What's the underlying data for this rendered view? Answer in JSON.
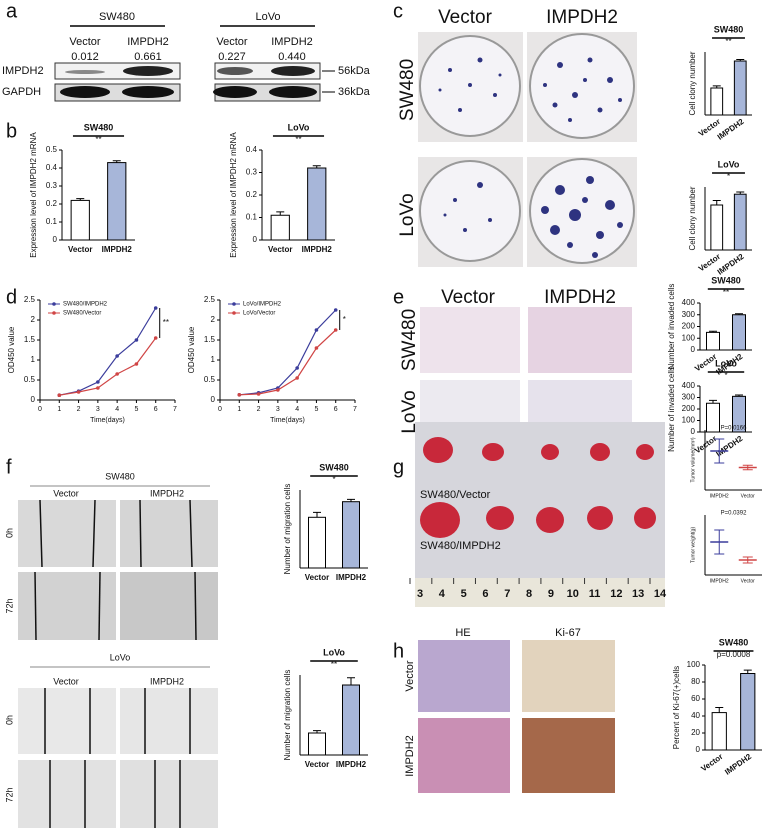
{
  "panel_letters": [
    "a",
    "b",
    "c",
    "d",
    "e",
    "f",
    "g",
    "h"
  ],
  "blot": {
    "cell_lines": [
      "SW480",
      "LoVo"
    ],
    "lanes": [
      "Vector",
      "IMPDH2",
      "Vector",
      "IMPDH2"
    ],
    "ratios": [
      "0.012",
      "0.661",
      "0.227",
      "0.440"
    ],
    "proteins": [
      "IMPDH2",
      "GAPDH"
    ],
    "sizes": [
      "56kDa",
      "36kDa"
    ]
  },
  "photo_labels": {
    "c": {
      "cols": [
        "Vector",
        "IMPDH2"
      ],
      "rows": [
        "SW480",
        "LoVo"
      ]
    },
    "e": {
      "cols": [
        "Vector",
        "IMPDH2"
      ],
      "rows": [
        "SW480",
        "LoVo"
      ]
    },
    "f": {
      "top": {
        "title": "SW480",
        "cols": [
          "Vector",
          "IMPDH2"
        ],
        "rows": [
          "0h",
          "72h"
        ]
      },
      "bottom": {
        "title": "LoVo",
        "cols": [
          "Vector",
          "IMPDH2"
        ],
        "rows": [
          "0h",
          "72h"
        ]
      }
    },
    "g": {
      "labels": [
        "SW480/Vector",
        "SW480/IMPDH2"
      ],
      "ruler": [
        "3",
        "4",
        "5",
        "6",
        "7",
        "8",
        "9",
        "10",
        "11",
        "12",
        "13",
        "14"
      ]
    },
    "h": {
      "cols": [
        "HE",
        "Ki-67"
      ],
      "rows": [
        "Vector",
        "IMPDH2"
      ]
    }
  },
  "chart_data": [
    {
      "type": "bar",
      "title": "SW480",
      "annotation": "**",
      "ylabel": "Expression level of IMPDH2 mRNA",
      "categories": [
        "Vector",
        "IMPDH2"
      ],
      "values": [
        0.22,
        0.43
      ],
      "errors": [
        0.01,
        0.01
      ],
      "colors": [
        "#ffffff",
        "#a7b6d9"
      ],
      "ylim": [
        0,
        0.5
      ],
      "yticks": [
        0,
        0.1,
        0.2,
        0.3,
        0.4,
        0.5
      ]
    },
    {
      "type": "bar",
      "title": "LoVo",
      "annotation": "**",
      "ylabel": "Expression level of IMPDH2 mRNA",
      "categories": [
        "Vector",
        "IMPDH2"
      ],
      "values": [
        0.11,
        0.32
      ],
      "errors": [
        0.015,
        0.01
      ],
      "colors": [
        "#ffffff",
        "#a7b6d9"
      ],
      "ylim": [
        0,
        0.4
      ],
      "yticks": [
        0,
        0.1,
        0.2,
        0.3,
        0.4
      ]
    },
    {
      "type": "bar",
      "title": "SW480",
      "annotation": "**",
      "ylabel": "Cell clony number",
      "categories": [
        "Vector",
        "IMPDH2"
      ],
      "values": [
        150,
        300
      ],
      "errors": [
        12,
        8
      ],
      "colors": [
        "#ffffff",
        "#a7b6d9"
      ],
      "ylim": [
        0,
        350
      ]
    },
    {
      "type": "bar",
      "title": "LoVo",
      "annotation": "*",
      "ylabel": "Cell clony number",
      "categories": [
        "Vector",
        "IMPDH2"
      ],
      "values": [
        250,
        310
      ],
      "errors": [
        25,
        12
      ],
      "colors": [
        "#ffffff",
        "#a7b6d9"
      ],
      "ylim": [
        0,
        350
      ]
    },
    {
      "type": "line",
      "xlabel": "Time(days)",
      "ylabel": "OD450 value",
      "annotation": "**",
      "x": [
        1,
        2,
        3,
        4,
        5,
        6
      ],
      "xlim": [
        0,
        7
      ],
      "xticks": [
        0,
        1,
        2,
        3,
        4,
        5,
        6,
        7
      ],
      "ylim": [
        0,
        2.5
      ],
      "yticks": [
        0,
        0.5,
        1,
        1.5,
        2,
        2.5
      ],
      "series": [
        {
          "name": "SW480/IMPDH2",
          "color": "#3b3d9c",
          "values": [
            0.12,
            0.22,
            0.45,
            1.1,
            1.5,
            2.3
          ]
        },
        {
          "name": "SW480/Vector",
          "color": "#d04545",
          "values": [
            0.12,
            0.2,
            0.3,
            0.65,
            0.9,
            1.55
          ]
        }
      ]
    },
    {
      "type": "line",
      "xlabel": "Time(days)",
      "ylabel": "OD450 value",
      "annotation": "*",
      "x": [
        1,
        2,
        3,
        4,
        5,
        6
      ],
      "xlim": [
        0,
        7
      ],
      "xticks": [
        0,
        1,
        2,
        3,
        4,
        5,
        6,
        7
      ],
      "ylim": [
        0,
        2.5
      ],
      "yticks": [
        0,
        0.5,
        1,
        1.5,
        2,
        2.5
      ],
      "series": [
        {
          "name": "LoVo/IMPDH2",
          "color": "#3b3d9c",
          "values": [
            0.13,
            0.18,
            0.3,
            0.8,
            1.75,
            2.25
          ]
        },
        {
          "name": "LoVo/Vector",
          "color": "#d04545",
          "values": [
            0.13,
            0.15,
            0.25,
            0.55,
            1.3,
            1.75
          ]
        }
      ]
    },
    {
      "type": "bar",
      "title": "SW480",
      "annotation": "**",
      "ylabel": "Number of invaded cells",
      "categories": [
        "Vector",
        "IMPDH2"
      ],
      "values": [
        150,
        300
      ],
      "errors": [
        10,
        8
      ],
      "colors": [
        "#ffffff",
        "#a7b6d9"
      ],
      "ylim": [
        0,
        400
      ],
      "yticks": [
        0,
        100,
        200,
        300,
        400
      ]
    },
    {
      "type": "bar",
      "title": "LoVo",
      "annotation": "*",
      "ylabel": "Number of invaded cells",
      "categories": [
        "Vector",
        "IMPDH2"
      ],
      "values": [
        250,
        310
      ],
      "errors": [
        25,
        12
      ],
      "colors": [
        "#ffffff",
        "#a7b6d9"
      ],
      "ylim": [
        0,
        400
      ],
      "yticks": [
        0,
        100,
        200,
        300,
        400
      ]
    },
    {
      "type": "bar",
      "title": "SW480",
      "annotation": "*",
      "ylabel": "Number of migration cells",
      "categories": [
        "Vector",
        "IMPDH2"
      ],
      "values": [
        260,
        340
      ],
      "errors": [
        25,
        12
      ],
      "colors": [
        "#ffffff",
        "#a7b6d9"
      ],
      "ylim": [
        0,
        400
      ]
    },
    {
      "type": "bar",
      "title": "LoVo",
      "annotation": "**",
      "ylabel": "Number of migration cells",
      "categories": [
        "Vector",
        "IMPDH2"
      ],
      "values": [
        55,
        175
      ],
      "errors": [
        6,
        18
      ],
      "colors": [
        "#ffffff",
        "#a7b6d9"
      ],
      "ylim": [
        0,
        200
      ]
    },
    {
      "type": "dot",
      "annotation": "P=0.0166",
      "ylabel": "Tumor volume(mm³)",
      "categories": [
        "IMPDH2",
        "Vector"
      ],
      "values": [
        2.6,
        1.5
      ],
      "errors": [
        0.8,
        0.15
      ],
      "colors": [
        "#3b3d9c",
        "#d04545"
      ],
      "ylim": [
        0,
        4
      ]
    },
    {
      "type": "dot",
      "annotation": "P=0.0392",
      "ylabel": "Tumor weight(g)",
      "categories": [
        "IMPDH2",
        "Vector"
      ],
      "values": [
        0.22,
        0.1
      ],
      "errors": [
        0.08,
        0.02
      ],
      "colors": [
        "#3b3d9c",
        "#d04545"
      ],
      "ylim": [
        0,
        0.4
      ]
    },
    {
      "type": "bar",
      "title": "SW480",
      "annotation": "p=0.0008",
      "ylabel": "Percent of Ki-67(+)cells",
      "categories": [
        "Vector",
        "IMPDH2"
      ],
      "values": [
        44,
        90
      ],
      "errors": [
        6,
        4
      ],
      "colors": [
        "#ffffff",
        "#a7b6d9"
      ],
      "ylim": [
        0,
        100
      ],
      "yticks": [
        0,
        20,
        40,
        60,
        80,
        100
      ]
    }
  ]
}
